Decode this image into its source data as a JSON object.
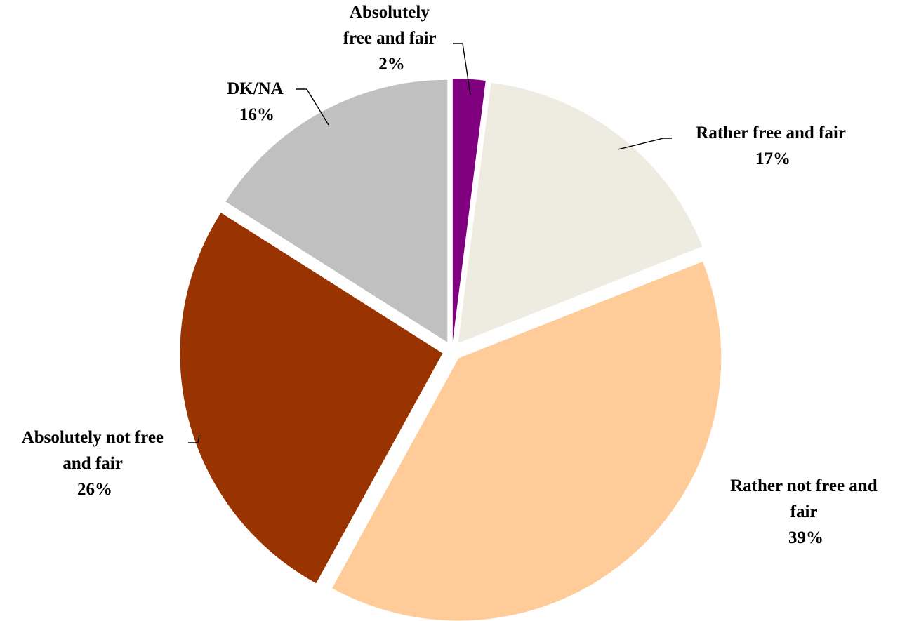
{
  "chart_data": {
    "type": "pie",
    "title": "",
    "start_angle_deg": 0,
    "direction": "clockwise",
    "exploded": true,
    "slices": [
      {
        "label_lines": [
          "Absolutely",
          "free and fair"
        ],
        "percent_label": "2%",
        "value": 2,
        "color": "#800080"
      },
      {
        "label_lines": [
          "Rather free and fair"
        ],
        "percent_label": "17%",
        "value": 17,
        "color": "#EEECE1"
      },
      {
        "label_lines": [
          "Rather not free and",
          "fair"
        ],
        "percent_label": "39%",
        "value": 39,
        "color": "#FFCC99"
      },
      {
        "label_lines": [
          "Absolutely not free",
          "and fair"
        ],
        "percent_label": "26%",
        "value": 26,
        "color": "#993300"
      },
      {
        "label_lines": [
          "DK/NA"
        ],
        "percent_label": "16%",
        "value": 16,
        "color": "#C0C0C0"
      }
    ]
  }
}
